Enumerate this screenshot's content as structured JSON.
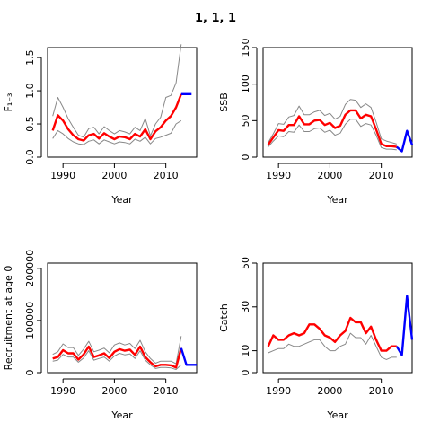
{
  "title": "1, 1, 1",
  "colors": {
    "median": "#ff0000",
    "projection": "#0000ff",
    "bounds": "#888888"
  },
  "chart_data": [
    {
      "type": "line",
      "ylabel": "F₁₋₃",
      "xlabel": "Year",
      "xlim": [
        1987,
        2016
      ],
      "ylim": [
        0,
        1.65
      ],
      "yticks": [
        0.0,
        0.5,
        1.0,
        1.5
      ],
      "xticks": [
        1990,
        2000,
        2010
      ],
      "series": [
        {
          "role": "upper",
          "x": [
            1988,
            1989,
            1990,
            1991,
            1992,
            1993,
            1994,
            1995,
            1996,
            1997,
            1998,
            1999,
            2000,
            2001,
            2002,
            2003,
            2004,
            2005,
            2006,
            2007,
            2008,
            2009,
            2010,
            2011,
            2012,
            2013
          ],
          "values": [
            0.62,
            0.9,
            0.75,
            0.58,
            0.45,
            0.33,
            0.3,
            0.43,
            0.45,
            0.35,
            0.46,
            0.4,
            0.35,
            0.4,
            0.38,
            0.35,
            0.45,
            0.4,
            0.58,
            0.32,
            0.5,
            0.6,
            0.9,
            0.93,
            1.12,
            1.7
          ]
        },
        {
          "role": "median",
          "x": [
            1988,
            1989,
            1990,
            1991,
            1992,
            1993,
            1994,
            1995,
            1996,
            1997,
            1998,
            1999,
            2000,
            2001,
            2002,
            2003,
            2004,
            2005,
            2006,
            2007,
            2008,
            2009,
            2010,
            2011,
            2012,
            2013
          ],
          "values": [
            0.4,
            0.63,
            0.55,
            0.42,
            0.33,
            0.27,
            0.25,
            0.33,
            0.35,
            0.28,
            0.36,
            0.31,
            0.27,
            0.31,
            0.3,
            0.27,
            0.35,
            0.31,
            0.42,
            0.27,
            0.39,
            0.45,
            0.55,
            0.62,
            0.75,
            0.95
          ]
        },
        {
          "role": "lower",
          "x": [
            1988,
            1989,
            1990,
            1991,
            1992,
            1993,
            1994,
            1995,
            1996,
            1997,
            1998,
            1999,
            2000,
            2001,
            2002,
            2003,
            2004,
            2005,
            2006,
            2007,
            2008,
            2009,
            2010,
            2011,
            2012,
            2013
          ],
          "values": [
            0.28,
            0.4,
            0.35,
            0.28,
            0.23,
            0.2,
            0.19,
            0.24,
            0.26,
            0.2,
            0.26,
            0.23,
            0.2,
            0.23,
            0.22,
            0.2,
            0.27,
            0.24,
            0.3,
            0.2,
            0.28,
            0.3,
            0.33,
            0.36,
            0.5,
            0.55
          ]
        },
        {
          "role": "projection",
          "x": [
            2013,
            2014,
            2015
          ],
          "values": [
            0.95,
            0.95,
            0.95
          ]
        }
      ]
    },
    {
      "type": "line",
      "ylabel": "SSB",
      "xlabel": "Year",
      "xlim": [
        1987,
        2016
      ],
      "ylim": [
        0,
        150
      ],
      "yticks": [
        0,
        50,
        100,
        150
      ],
      "xticks": [
        1990,
        2000,
        2010
      ],
      "series": [
        {
          "role": "upper",
          "x": [
            1988,
            1989,
            1990,
            1991,
            1992,
            1993,
            1994,
            1995,
            1996,
            1997,
            1998,
            1999,
            2000,
            2001,
            2002,
            2003,
            2004,
            2005,
            2006,
            2007,
            2008,
            2009,
            2010,
            2011,
            2012,
            2013
          ],
          "values": [
            20,
            32,
            46,
            45,
            55,
            57,
            70,
            58,
            58,
            62,
            64,
            57,
            60,
            52,
            56,
            72,
            79,
            78,
            68,
            73,
            68,
            48,
            25,
            22,
            20,
            18
          ]
        },
        {
          "role": "median",
          "x": [
            1988,
            1989,
            1990,
            1991,
            1992,
            1993,
            1994,
            1995,
            1996,
            1997,
            1998,
            1999,
            2000,
            2001,
            2002,
            2003,
            2004,
            2005,
            2006,
            2007,
            2008,
            2009,
            2010,
            2011,
            2012,
            2013
          ],
          "values": [
            17,
            27,
            37,
            36,
            44,
            44,
            56,
            45,
            45,
            50,
            51,
            44,
            47,
            40,
            43,
            58,
            64,
            64,
            53,
            58,
            56,
            38,
            18,
            15,
            15,
            14
          ]
        },
        {
          "role": "lower",
          "x": [
            1988,
            1989,
            1990,
            1991,
            1992,
            1993,
            1994,
            1995,
            1996,
            1997,
            1998,
            1999,
            2000,
            2001,
            2002,
            2003,
            2004,
            2005,
            2006,
            2007,
            2008,
            2009,
            2010,
            2011,
            2012,
            2013
          ],
          "values": [
            14,
            22,
            29,
            28,
            35,
            34,
            44,
            35,
            35,
            39,
            40,
            34,
            37,
            30,
            33,
            45,
            52,
            52,
            42,
            46,
            44,
            30,
            13,
            11,
            11,
            10
          ]
        },
        {
          "role": "projection",
          "x": [
            2013,
            2014,
            2015,
            2016
          ],
          "values": [
            14,
            8,
            36,
            17
          ]
        }
      ]
    },
    {
      "type": "line",
      "ylabel": "Recruitment at age 0",
      "xlabel": "Year",
      "xlim": [
        1987,
        2016
      ],
      "ylim": [
        0,
        210000
      ],
      "yticks": [
        0,
        100000,
        200000
      ],
      "xticks": [
        1990,
        2000,
        2010
      ],
      "series": [
        {
          "role": "upper",
          "x": [
            1988,
            1989,
            1990,
            1991,
            1992,
            1993,
            1994,
            1995,
            1996,
            1997,
            1998,
            1999,
            2000,
            2001,
            2002,
            2003,
            2004,
            2005,
            2006,
            2007,
            2008,
            2009,
            2010,
            2011,
            2012,
            2013
          ],
          "values": [
            35000,
            40000,
            55000,
            48000,
            48000,
            33000,
            45000,
            60000,
            40000,
            43000,
            47000,
            38000,
            53000,
            57000,
            53000,
            56000,
            46000,
            62000,
            40000,
            27000,
            18000,
            22000,
            22000,
            22000,
            17000,
            70000
          ]
        },
        {
          "role": "median",
          "x": [
            1988,
            1989,
            1990,
            1991,
            1992,
            1993,
            1994,
            1995,
            1996,
            1997,
            1998,
            1999,
            2000,
            2001,
            2002,
            2003,
            2004,
            2005,
            2006,
            2007,
            2008,
            2009,
            2010,
            2011,
            2012,
            2013
          ],
          "values": [
            27000,
            30000,
            43000,
            37000,
            37000,
            25000,
            35000,
            50000,
            30000,
            33000,
            37000,
            28000,
            40000,
            45000,
            42000,
            44000,
            34000,
            50000,
            30000,
            20000,
            12000,
            15000,
            15000,
            14000,
            10000,
            47000
          ]
        },
        {
          "role": "lower",
          "x": [
            1988,
            1989,
            1990,
            1991,
            1992,
            1993,
            1994,
            1995,
            1996,
            1997,
            1998,
            1999,
            2000,
            2001,
            2002,
            2003,
            2004,
            2005,
            2006,
            2007,
            2008,
            2009,
            2010,
            2011,
            2012,
            2013
          ],
          "values": [
            22000,
            24000,
            35000,
            30000,
            30000,
            20000,
            28000,
            42000,
            24000,
            27000,
            30000,
            22000,
            32000,
            37000,
            34000,
            36000,
            27000,
            42000,
            24000,
            15000,
            8000,
            10000,
            10000,
            9000,
            6000,
            15000
          ]
        },
        {
          "role": "projection",
          "x": [
            2013,
            2014,
            2015,
            2016
          ],
          "values": [
            47000,
            15000,
            15000,
            15000
          ]
        }
      ]
    },
    {
      "type": "line",
      "ylabel": "Catch",
      "xlabel": "Year",
      "xlim": [
        1987,
        2016
      ],
      "ylim": [
        0,
        50
      ],
      "yticks": [
        0,
        10,
        30,
        50
      ],
      "xticks": [
        1990,
        2000,
        2010
      ],
      "series": [
        {
          "role": "lower",
          "x": [
            1988,
            1989,
            1990,
            1991,
            1992,
            1993,
            1994,
            1995,
            1996,
            1997,
            1998,
            1999,
            2000,
            2001,
            2002,
            2003,
            2004,
            2005,
            2006,
            2007,
            2008,
            2009,
            2010,
            2011,
            2012,
            2013
          ],
          "values": [
            9,
            10,
            11,
            11,
            13,
            12,
            12,
            13,
            14,
            15,
            15,
            12,
            10,
            10,
            12,
            13,
            18,
            16,
            16,
            13,
            17,
            12,
            7,
            6,
            7,
            7
          ]
        },
        {
          "role": "median",
          "x": [
            1988,
            1989,
            1990,
            1991,
            1992,
            1993,
            1994,
            1995,
            1996,
            1997,
            1998,
            1999,
            2000,
            2001,
            2002,
            2003,
            2004,
            2005,
            2006,
            2007,
            2008,
            2009,
            2010,
            2011,
            2012,
            2013
          ],
          "values": [
            12,
            17,
            15,
            15,
            17,
            18,
            17,
            18,
            22,
            22,
            20,
            17,
            16,
            14,
            17,
            19,
            25,
            23,
            23,
            18,
            21,
            15,
            10,
            10,
            12,
            12
          ]
        },
        {
          "role": "projection",
          "x": [
            2013,
            2014,
            2015,
            2016
          ],
          "values": [
            12,
            8,
            35,
            15
          ]
        }
      ]
    }
  ]
}
